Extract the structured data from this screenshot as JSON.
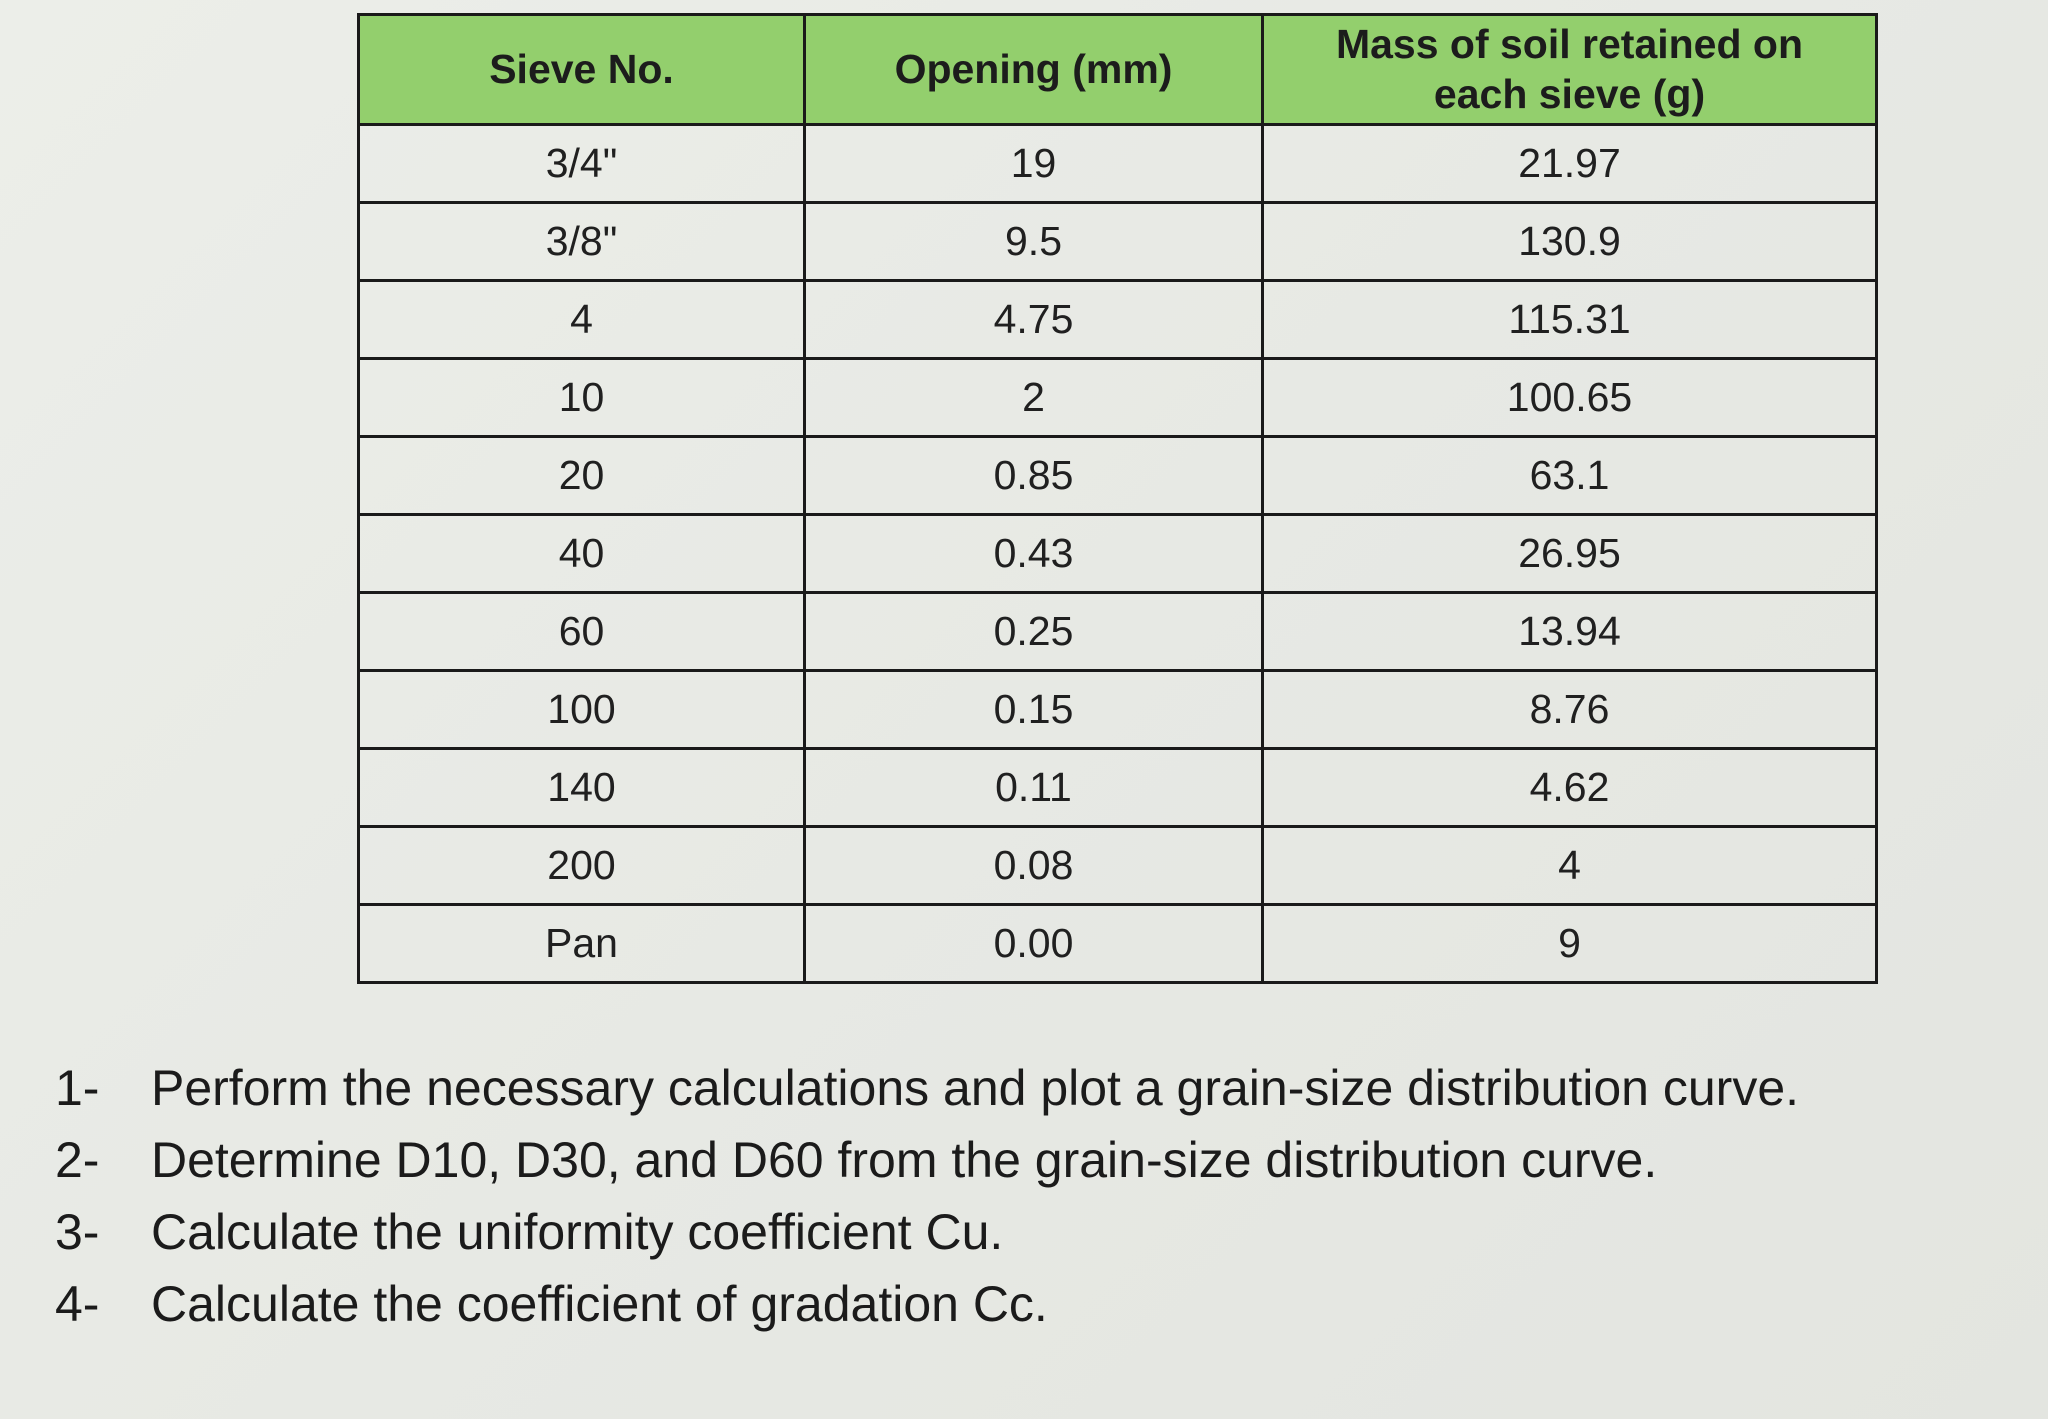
{
  "table": {
    "headers": {
      "sieve_no": "Sieve No.",
      "opening": "Opening (mm)",
      "mass_line1": "Mass of soil retained on",
      "mass_line2": "each sieve (g)"
    },
    "rows": [
      {
        "sieve": "3/4\"",
        "opening": "19",
        "mass": "21.97"
      },
      {
        "sieve": "3/8\"",
        "opening": "9.5",
        "mass": "130.9"
      },
      {
        "sieve": "4",
        "opening": "4.75",
        "mass": "115.31"
      },
      {
        "sieve": "10",
        "opening": "2",
        "mass": "100.65"
      },
      {
        "sieve": "20",
        "opening": "0.85",
        "mass": "63.1"
      },
      {
        "sieve": "40",
        "opening": "0.43",
        "mass": "26.95"
      },
      {
        "sieve": "60",
        "opening": "0.25",
        "mass": "13.94"
      },
      {
        "sieve": "100",
        "opening": "0.15",
        "mass": "8.76"
      },
      {
        "sieve": "140",
        "opening": "0.11",
        "mass": "4.62"
      },
      {
        "sieve": "200",
        "opening": "0.08",
        "mass": "4"
      },
      {
        "sieve": "Pan",
        "opening": "0.00",
        "mass": "9"
      }
    ]
  },
  "questions": [
    {
      "num": "1-",
      "text": "Perform the necessary calculations and plot a grain-size distribution curve."
    },
    {
      "num": "2-",
      "text": "Determine D10, D30, and D60 from the grain-size distribution curve."
    },
    {
      "num": "3-",
      "text": "Calculate the uniformity coefficient Cu."
    },
    {
      "num": "4-",
      "text": "Calculate the coefficient of gradation Cc."
    }
  ],
  "colors": {
    "header_fill": "#93cf6d",
    "border": "#1a1a1a",
    "background": "#e9ebe6"
  }
}
